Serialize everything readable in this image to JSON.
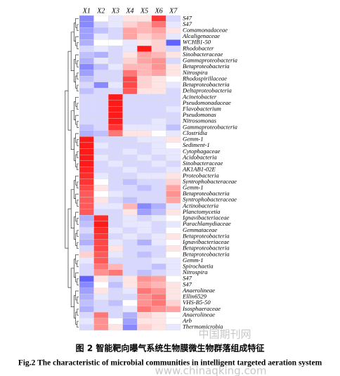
{
  "chart_data": {
    "type": "heatmap",
    "x": [
      "X1",
      "X2",
      "X3",
      "X4",
      "X5",
      "X6",
      "X7"
    ],
    "y": [
      "S47",
      "S47",
      "Comamonadaceae",
      "Alcaligenaceae",
      "WCHB1-50",
      "Rhodobacter",
      "Sinobacteraceae",
      "Gammaproteobacteria",
      "Betaproteobacteria",
      "Nitrospira",
      "Rhodospirillaceae",
      "Betaproteobacteria",
      "Deltaproteobacteria",
      "Acinetobacter",
      "Pseudomonadaceae",
      "Flavobacterium",
      "Pseudomonas",
      "Nitrosomonas",
      "Gammaproteobacteria",
      "Clostridia",
      "Gemm-1",
      "Sediment-1",
      "Cytophagaceae",
      "Acidobacteria",
      "Sinobacteraceae",
      "AK1AB1-02E",
      "Proteobacteria",
      "Syntrophobacteraceae",
      "Gemm-1",
      "Betaproteobacteria",
      "Syntrophobacteraceae",
      "Actinobacteria",
      "Planctomycetia",
      "Ignavibacteriaceae",
      "Parachlamydiaceae",
      "Gemmataceae",
      "Betaproteobacteria",
      "Ignavibacteriaceae",
      "Betaproteobacteria",
      "Betaproteobacteria",
      "Gemm-1",
      "Spirochaetia",
      "Nitrospira",
      "S47",
      "S47",
      "Anaerolineae",
      "Ellin6529",
      "VHS-B5-50",
      "Isosphaeraceae",
      "Anaerolineae",
      "Arb",
      "Thermomicrobia"
    ],
    "values": [
      [
        -1.5,
        0,
        -0.3,
        0.3,
        0.3,
        2.2,
        -0.5
      ],
      [
        -1.5,
        -0.5,
        -0.3,
        0.5,
        0.8,
        1.5,
        -0.3
      ],
      [
        -1.2,
        -0.8,
        -0.5,
        1,
        0.8,
        1,
        0.3
      ],
      [
        -1.2,
        -0.3,
        -0.5,
        1,
        0.5,
        0.8,
        -0.3
      ],
      [
        -1,
        0,
        0,
        -0.3,
        0.3,
        0.5,
        -2
      ],
      [
        -0.5,
        -0.3,
        -0.5,
        -0.3,
        2.5,
        0.5,
        -0.5
      ],
      [
        -0.8,
        -1,
        -0.5,
        0.3,
        1,
        0.8,
        0.3
      ],
      [
        -1,
        -0.3,
        -0.5,
        0.5,
        1,
        1.2,
        -0.5
      ],
      [
        -1.5,
        -0.8,
        -0.3,
        0.8,
        0.8,
        1.2,
        0.3
      ],
      [
        -1.2,
        -0.5,
        -0.5,
        1.5,
        0.8,
        1,
        0.3
      ],
      [
        -0.8,
        -0.5,
        -0.5,
        2,
        0.5,
        0.3,
        0
      ],
      [
        -0.5,
        -1.5,
        -0.3,
        2,
        0.5,
        0.3,
        -0.3
      ],
      [
        -0.8,
        -0.5,
        -0.5,
        1.8,
        0.3,
        0.3,
        -0.5
      ],
      [
        -0.5,
        -0.5,
        2.5,
        -0.5,
        -0.5,
        -0.5,
        -0.5
      ],
      [
        -0.5,
        -0.5,
        2.5,
        -0.5,
        -0.5,
        -0.5,
        -0.5
      ],
      [
        -0.5,
        -0.5,
        2.5,
        -0.5,
        -0.5,
        -0.5,
        -0.3
      ],
      [
        -0.5,
        -0.5,
        2.5,
        -0.5,
        -0.5,
        -0.5,
        -0.5
      ],
      [
        -0.5,
        -0.5,
        2.5,
        -0.5,
        -0.5,
        -0.3,
        -0.5
      ],
      [
        -0.8,
        -0.5,
        2.2,
        -0.3,
        -0.3,
        -0.3,
        -0.8
      ],
      [
        -1,
        -0.8,
        1.5,
        0.3,
        0.3,
        0,
        -0.3
      ],
      [
        2.5,
        -0.5,
        -0.5,
        -0.5,
        -0.3,
        -0.3,
        0.3
      ],
      [
        2.5,
        -0.3,
        -0.5,
        -0.5,
        -0.5,
        -0.3,
        0
      ],
      [
        2.5,
        -0.5,
        -0.5,
        -0.3,
        -0.5,
        -0.3,
        -0.3
      ],
      [
        2.5,
        -0.3,
        -0.5,
        -0.5,
        -0.3,
        -0.5,
        -0.3
      ],
      [
        2.5,
        -0.5,
        -0.3,
        -0.5,
        -0.5,
        -0.3,
        -0.5
      ],
      [
        2.4,
        -0.5,
        -0.5,
        -0.3,
        -0.5,
        -0.5,
        -0.3
      ],
      [
        2.3,
        -0.3,
        -0.5,
        -0.5,
        -0.3,
        -0.3,
        0.3
      ],
      [
        2.2,
        0,
        -0.5,
        -0.8,
        -0.5,
        -0.5,
        0.5
      ],
      [
        2,
        0.3,
        -0.5,
        -0.5,
        -0.8,
        -0.5,
        1
      ],
      [
        1.8,
        0,
        -0.3,
        -0.5,
        -0.5,
        -0.5,
        1.2
      ],
      [
        1.8,
        0.3,
        -0.5,
        -0.8,
        -0.5,
        -0.5,
        1
      ],
      [
        1.8,
        -0.3,
        -0.3,
        0.8,
        -1.5,
        -1,
        -0.3
      ],
      [
        1.8,
        -0.5,
        -0.5,
        0.3,
        -1.2,
        -0.8,
        0.3
      ],
      [
        -1,
        2.3,
        -0.5,
        -0.3,
        -0.5,
        -0.3,
        0
      ],
      [
        -0.8,
        2.5,
        -0.5,
        -0.3,
        -0.3,
        -0.5,
        -0.3
      ],
      [
        -0.5,
        2.3,
        -0.3,
        -0.5,
        -0.3,
        -0.5,
        0
      ],
      [
        -0.8,
        2.2,
        -0.5,
        -0.3,
        -0.5,
        -0.3,
        0.3
      ],
      [
        -1,
        2,
        -0.3,
        -0.5,
        -1,
        -0.3,
        0
      ],
      [
        -0.5,
        2,
        0.3,
        -0.5,
        -0.5,
        -0.5,
        0.3
      ],
      [
        0.5,
        1.8,
        -0.3,
        -0.5,
        -0.8,
        -0.5,
        0
      ],
      [
        -0.3,
        1.8,
        -0.5,
        -0.5,
        -0.5,
        -0.3,
        -0.3
      ],
      [
        -0.5,
        1.5,
        0.8,
        -0.5,
        -0.5,
        -0.8,
        -0.3
      ],
      [
        -0.5,
        1.2,
        1.5,
        -0.5,
        -0.8,
        -0.5,
        -0.3
      ],
      [
        -2,
        0.3,
        -0.5,
        0.3,
        1.2,
        1,
        0
      ],
      [
        -1.5,
        0,
        -0.8,
        0.3,
        1,
        0.8,
        0.3
      ],
      [
        -1.2,
        0.3,
        -0.5,
        -0.3,
        1.5,
        1.2,
        0.3
      ],
      [
        -1,
        -0.3,
        -0.5,
        -0.5,
        1.2,
        1.5,
        0.3
      ],
      [
        -0.8,
        -0.5,
        -0.8,
        0,
        1.2,
        1.5,
        0.5
      ],
      [
        -1,
        -0.5,
        -0.5,
        -0.3,
        1.5,
        1.2,
        1
      ],
      [
        -0.5,
        1.5,
        -0.5,
        -1,
        0.5,
        0.3,
        0
      ],
      [
        -0.3,
        1.2,
        0,
        -1.2,
        0.3,
        0.3,
        0
      ],
      [
        -0.5,
        1.2,
        0.3,
        -1.5,
        0.5,
        0.3,
        -0.3
      ]
    ],
    "zlim": [
      -2.5,
      2.5
    ],
    "colors": [
      "#3a3aff",
      "#ffffff",
      "#ff1a1a"
    ],
    "caption": "图 2  智能靶向曝气系统生物膜微生物群落组成特征",
    "caption_en": "Fig.2 The characteristic of microbial communities in intelligent targeted aeration system",
    "watermark": [
      "中国期刊网",
      "www.chinaqking.com"
    ]
  }
}
